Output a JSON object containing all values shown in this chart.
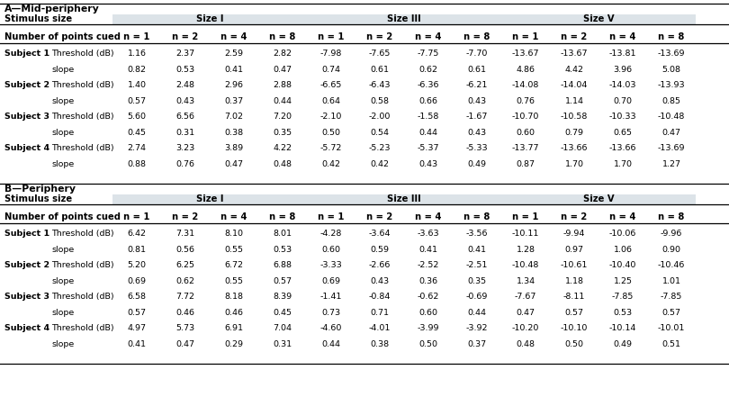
{
  "title_A": "A—Mid-periphery",
  "title_B": "B—Periphery",
  "header_row1_label": "Stimulus size",
  "header_row2_label": "Number of points cued",
  "size_headers": [
    "Size I",
    "Size III",
    "Size V"
  ],
  "n_headers": [
    "n = 1",
    "n = 2",
    "n = 4",
    "n = 8",
    "n = 1",
    "n = 2",
    "n = 4",
    "n = 8",
    "n = 1",
    "n = 2",
    "n = 4",
    "n = 8"
  ],
  "data_A": [
    [
      1.16,
      2.37,
      2.59,
      2.82,
      -7.98,
      -7.65,
      -7.75,
      -7.7,
      -13.67,
      -13.67,
      -13.81,
      -13.69
    ],
    [
      0.82,
      0.53,
      0.41,
      0.47,
      0.74,
      0.61,
      0.62,
      0.61,
      4.86,
      4.42,
      3.96,
      5.08
    ],
    [
      1.4,
      2.48,
      2.96,
      2.88,
      -6.65,
      -6.43,
      -6.36,
      -6.21,
      -14.08,
      -14.04,
      -14.03,
      -13.93
    ],
    [
      0.57,
      0.43,
      0.37,
      0.44,
      0.64,
      0.58,
      0.66,
      0.43,
      0.76,
      1.14,
      0.7,
      0.85
    ],
    [
      5.6,
      6.56,
      7.02,
      7.2,
      -2.1,
      -2.0,
      -1.58,
      -1.67,
      -10.7,
      -10.58,
      -10.33,
      -10.48
    ],
    [
      0.45,
      0.31,
      0.38,
      0.35,
      0.5,
      0.54,
      0.44,
      0.43,
      0.6,
      0.79,
      0.65,
      0.47
    ],
    [
      2.74,
      3.23,
      3.89,
      4.22,
      -5.72,
      -5.23,
      -5.37,
      -5.33,
      -13.77,
      -13.66,
      -13.66,
      -13.69
    ],
    [
      0.88,
      0.76,
      0.47,
      0.48,
      0.42,
      0.42,
      0.43,
      0.49,
      0.87,
      1.7,
      1.7,
      1.27
    ]
  ],
  "data_B": [
    [
      6.42,
      7.31,
      8.1,
      8.01,
      -4.28,
      -3.64,
      -3.63,
      -3.56,
      -10.11,
      -9.94,
      -10.06,
      -9.96
    ],
    [
      0.81,
      0.56,
      0.55,
      0.53,
      0.6,
      0.59,
      0.41,
      0.41,
      1.28,
      0.97,
      1.06,
      0.9
    ],
    [
      5.2,
      6.25,
      6.72,
      6.88,
      -3.33,
      -2.66,
      -2.52,
      -2.51,
      -10.48,
      -10.61,
      -10.4,
      -10.46
    ],
    [
      0.69,
      0.62,
      0.55,
      0.57,
      0.69,
      0.43,
      0.36,
      0.35,
      1.34,
      1.18,
      1.25,
      1.01
    ],
    [
      6.58,
      7.72,
      8.18,
      8.39,
      -1.41,
      -0.84,
      -0.62,
      -0.69,
      -7.67,
      -8.11,
      -7.85,
      -7.85
    ],
    [
      0.57,
      0.46,
      0.46,
      0.45,
      0.73,
      0.71,
      0.6,
      0.44,
      0.47,
      0.57,
      0.53,
      0.57
    ],
    [
      4.97,
      5.73,
      6.91,
      7.04,
      -4.6,
      -4.01,
      -3.99,
      -3.92,
      -10.2,
      -10.1,
      -10.14,
      -10.01
    ],
    [
      0.41,
      0.47,
      0.29,
      0.31,
      0.44,
      0.38,
      0.5,
      0.37,
      0.48,
      0.5,
      0.49,
      0.51
    ]
  ],
  "bg_color": "#ffffff",
  "gray_band_color": "#dce3e8",
  "text_color": "#000000",
  "figwidth": 8.1,
  "figheight": 4.61,
  "dpi": 100
}
